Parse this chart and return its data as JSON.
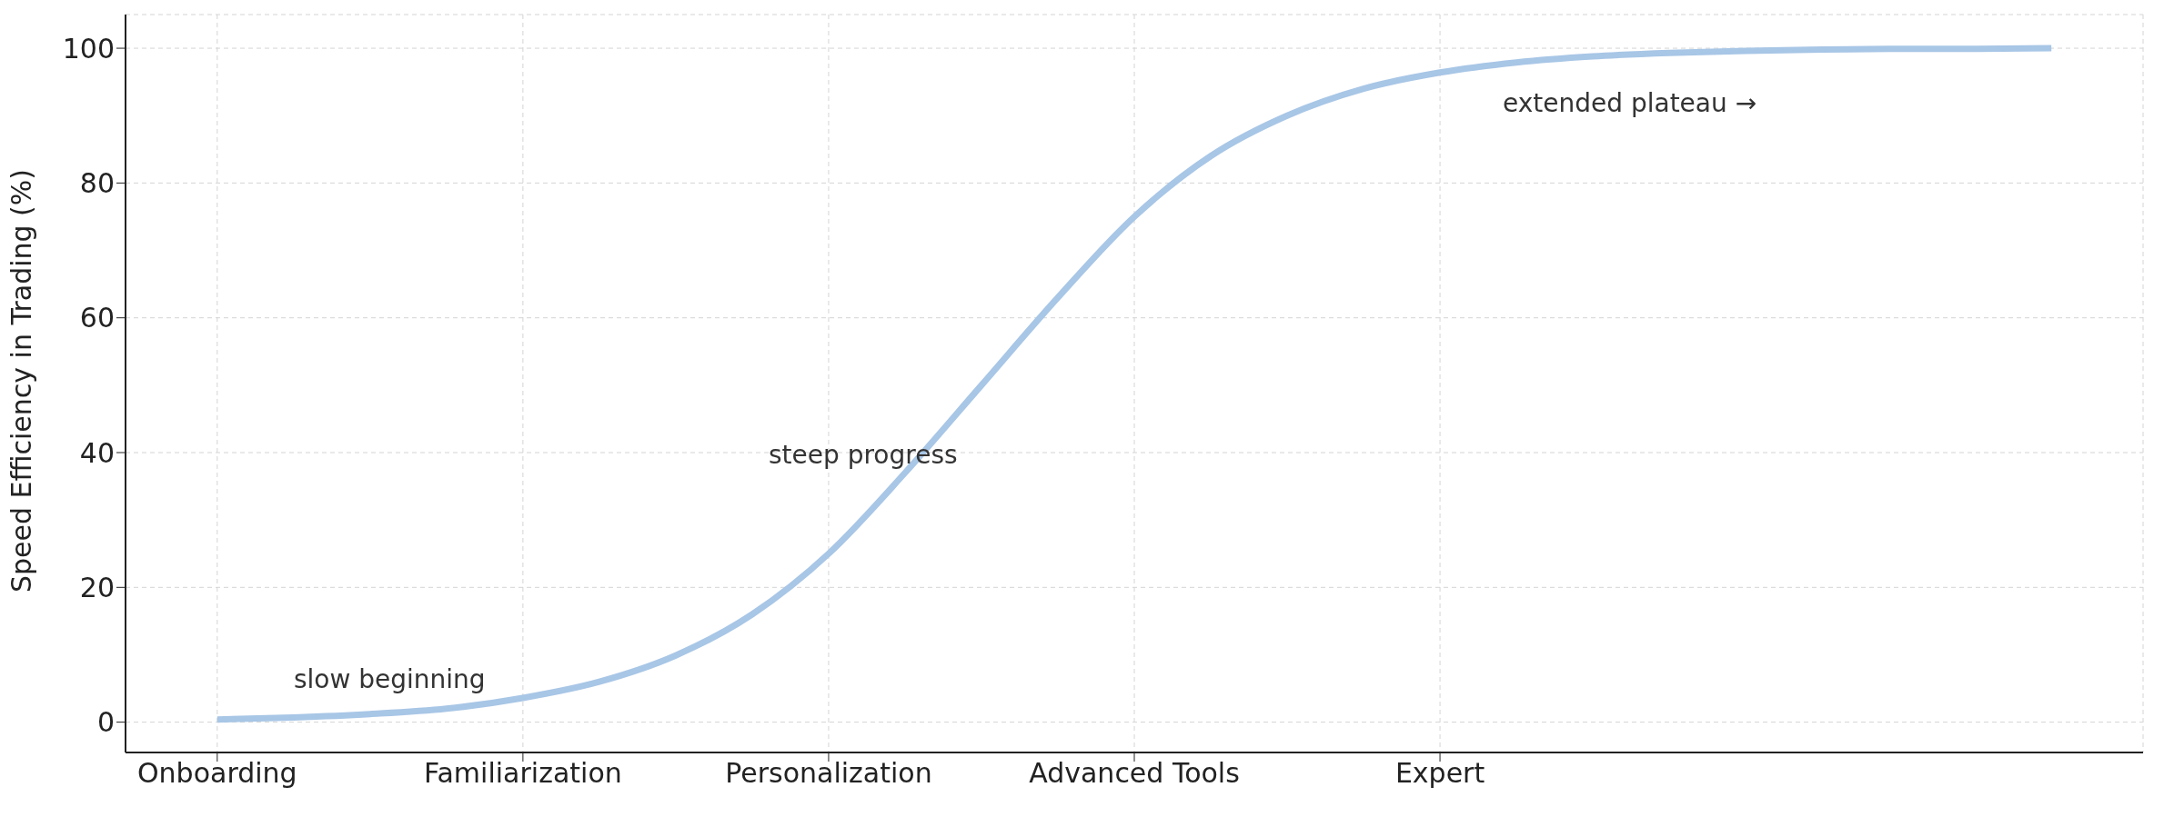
{
  "chart_data": {
    "type": "line",
    "ylabel": "Speed Efficiency in Trading (%)",
    "categories": [
      "Onboarding",
      null,
      null,
      null,
      "Familiarization",
      null,
      null,
      null,
      "Personalization",
      null,
      null,
      null,
      "Advanced Tools",
      null,
      null,
      null,
      "Expert",
      null,
      null,
      null,
      null,
      null,
      null,
      null,
      null
    ],
    "series": [
      {
        "color": "#a8c6e6",
        "values": [
          0.4,
          0.7,
          1.2,
          2.0,
          3.6,
          6.0,
          9.9,
          16,
          25,
          37,
          50,
          63,
          75,
          84,
          90,
          94,
          96.4,
          97.9,
          98.8,
          99.3,
          99.6,
          99.8,
          99.9,
          99.9,
          100
        ]
      }
    ],
    "ylim": [
      -4.5,
      105
    ],
    "yticks": [
      0,
      20,
      40,
      60,
      80,
      100
    ],
    "grid": true,
    "line_style": "solid",
    "marker": "none",
    "legend": false,
    "annotations": [
      "slow beginning",
      "steep progress",
      "extended plateau →"
    ]
  }
}
